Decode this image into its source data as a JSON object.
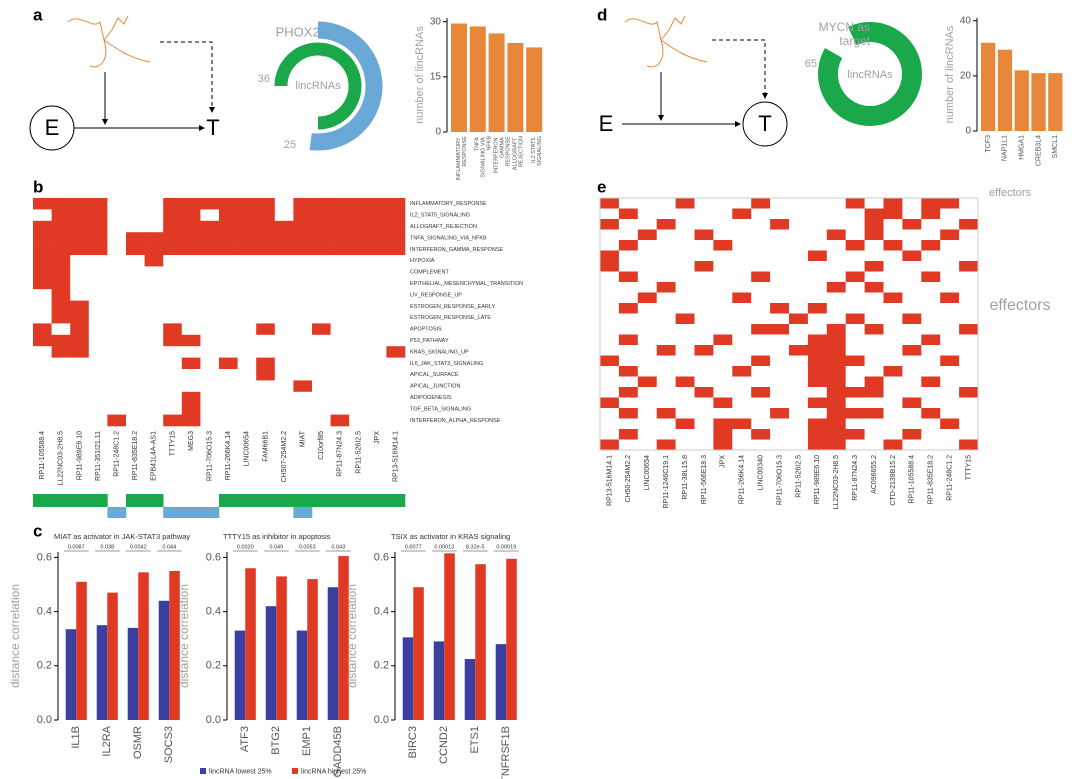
{
  "panel_labels": [
    "a",
    "b",
    "c",
    "d",
    "e"
  ],
  "diagrams": [
    {
      "source": "E",
      "target": "T"
    },
    {
      "source": "E",
      "target": "T"
    }
  ],
  "chart_data": [
    {
      "type": "donut",
      "lim": [
        0,
        48
      ],
      "center_label": "lincRNAs",
      "rings": [
        {
          "name": "MYCN",
          "color": "#1aa84a",
          "value": 36
        },
        {
          "name": "PHOX2B",
          "color": "#6aa8d8",
          "value": 25
        }
      ]
    },
    {
      "type": "bar",
      "ylabel": "number of lincRNAs",
      "color": "#e8873a",
      "categories": [
        "INFLAMMATORY RESPONSE",
        "TNFA SIGNALING VIA NFKB",
        "INTERFERON GAMMA RESPONSE",
        "ALLOGRAFT REJECTION",
        "IL2 STAT5 SIGNALING"
      ],
      "values": [
        29.5,
        28.7,
        26.8,
        24.2,
        23
      ],
      "ylim": [
        0,
        31
      ],
      "yticks": [
        0,
        15,
        30
      ]
    },
    {
      "type": "donut",
      "lim": [
        0,
        72
      ],
      "center_label": "lincRNAs",
      "rings": [
        {
          "name": "MYCN as target",
          "color": "#1aa84a",
          "value": 65
        }
      ]
    },
    {
      "type": "bar",
      "ylabel": "number of lincRNAs",
      "xlabel": "effectors",
      "color": "#e8873a",
      "categories": [
        "TCF3",
        "NAP1L1",
        "HMGA1",
        "CREB3L4",
        "SMCL1"
      ],
      "values": [
        32,
        29.5,
        22,
        21,
        21
      ],
      "ylim": [
        0,
        41
      ],
      "yticks": [
        0,
        20,
        40
      ]
    },
    {
      "type": "heatmap",
      "color": "#e03a25",
      "columns": [
        "RP11-105588.4",
        "LL22NC03-2H8.5",
        "RP11-989E6.10",
        "RP11-351I21.11",
        "RP11-248C1.2",
        "RP11-835E18.2",
        "EPB41L4A-AS1",
        "TTTY15",
        "MEG3",
        "RP11-706O15.3",
        "RP11-266K4.14",
        "LINC00654",
        "FAM66B1",
        "CH507-254M2.2",
        "MIAT",
        "C10orf85",
        "RP11-87N24.3",
        "RP11-526I2.5",
        "JPX",
        "RP13-516M14.1"
      ],
      "rows": [
        "INFLAMMATORY_RESPONSE",
        "IL2_STAT5_SIGNALING",
        "ALLOGRAFT_REJECTION",
        "TNFA_SIGNALING_VIA_NFKB",
        "INTERFERON_GAMMA_RESPONSE",
        "HYPOXIA",
        "COMPLEMENT",
        "EPITHELIAL_MESENCHYMAL_TRANSITION",
        "UV_RESPONSE_UP",
        "ESTROGEN_RESPONSE_EARLY",
        "ESTROGEN_RESPONSE_LATE",
        "APOPTOSIS",
        "P53_PATHWAY",
        "KRAS_SIGNALING_UP",
        "IL6_JAK_STAT3_SIGNALING",
        "APICAL_SURFACE",
        "APICAL_JUNCTION",
        "ADIPOGENESIS",
        "TGF_BETA_SIGNALING",
        "INTERFERON_ALPHA_RESPONSE"
      ],
      "matrix": [
        [
          1,
          1,
          1,
          1,
          0,
          0,
          0,
          1,
          1,
          1,
          1,
          1,
          1,
          0,
          1,
          1,
          1,
          1,
          1,
          1
        ],
        [
          0,
          1,
          1,
          1,
          0,
          0,
          0,
          1,
          1,
          0,
          1,
          1,
          1,
          0,
          1,
          1,
          1,
          1,
          1,
          1
        ],
        [
          1,
          1,
          1,
          1,
          0,
          0,
          0,
          1,
          1,
          1,
          1,
          1,
          1,
          1,
          1,
          1,
          1,
          1,
          1,
          1
        ],
        [
          1,
          1,
          1,
          1,
          0,
          1,
          1,
          1,
          1,
          1,
          1,
          1,
          1,
          1,
          1,
          1,
          1,
          1,
          1,
          1
        ],
        [
          1,
          1,
          1,
          1,
          0,
          1,
          1,
          1,
          1,
          1,
          1,
          1,
          1,
          1,
          1,
          1,
          1,
          1,
          1,
          1
        ],
        [
          1,
          1,
          0,
          0,
          0,
          0,
          1,
          0,
          0,
          0,
          0,
          0,
          0,
          0,
          0,
          0,
          0,
          0,
          0,
          0
        ],
        [
          1,
          1,
          0,
          0,
          0,
          0,
          0,
          0,
          0,
          0,
          0,
          0,
          0,
          0,
          0,
          0,
          0,
          0,
          0,
          0
        ],
        [
          1,
          1,
          0,
          0,
          0,
          0,
          0,
          0,
          0,
          0,
          0,
          0,
          0,
          0,
          0,
          0,
          0,
          0,
          0,
          0
        ],
        [
          0,
          1,
          0,
          0,
          0,
          0,
          0,
          0,
          0,
          0,
          0,
          0,
          0,
          0,
          0,
          0,
          0,
          0,
          0,
          0
        ],
        [
          0,
          1,
          1,
          0,
          0,
          0,
          0,
          0,
          0,
          0,
          0,
          0,
          0,
          0,
          0,
          0,
          0,
          0,
          0,
          0
        ],
        [
          0,
          1,
          1,
          0,
          0,
          0,
          0,
          0,
          0,
          0,
          0,
          0,
          0,
          0,
          0,
          0,
          0,
          0,
          0,
          0
        ],
        [
          1,
          0,
          1,
          0,
          0,
          0,
          0,
          1,
          0,
          0,
          0,
          0,
          1,
          0,
          0,
          1,
          0,
          0,
          0,
          0
        ],
        [
          1,
          1,
          1,
          0,
          0,
          0,
          0,
          1,
          1,
          0,
          0,
          0,
          0,
          0,
          0,
          0,
          0,
          0,
          0,
          0
        ],
        [
          0,
          1,
          1,
          0,
          0,
          0,
          0,
          0,
          0,
          0,
          0,
          0,
          0,
          0,
          0,
          0,
          0,
          0,
          0,
          1
        ],
        [
          0,
          0,
          0,
          0,
          0,
          0,
          0,
          0,
          1,
          0,
          1,
          0,
          1,
          0,
          0,
          0,
          0,
          0,
          0,
          0
        ],
        [
          0,
          0,
          0,
          0,
          0,
          0,
          0,
          0,
          0,
          0,
          0,
          0,
          1,
          0,
          0,
          0,
          0,
          0,
          0,
          0
        ],
        [
          0,
          0,
          0,
          0,
          0,
          0,
          0,
          0,
          0,
          0,
          0,
          0,
          0,
          0,
          1,
          0,
          0,
          0,
          0,
          0
        ],
        [
          0,
          0,
          0,
          0,
          0,
          0,
          0,
          0,
          1,
          0,
          0,
          0,
          0,
          0,
          0,
          0,
          0,
          0,
          0,
          0
        ],
        [
          0,
          0,
          0,
          0,
          0,
          0,
          0,
          0,
          1,
          0,
          0,
          0,
          0,
          0,
          0,
          0,
          0,
          0,
          0,
          0
        ],
        [
          0,
          0,
          0,
          0,
          1,
          0,
          0,
          1,
          1,
          0,
          0,
          0,
          0,
          0,
          0,
          0,
          1,
          0,
          0,
          0
        ]
      ]
    },
    {
      "type": "strip",
      "rows": [
        {
          "color": "#1aa84a",
          "values": [
            1,
            1,
            1,
            1,
            0,
            1,
            1,
            0,
            0,
            0,
            1,
            1,
            1,
            1,
            1,
            1,
            1,
            1,
            1,
            1
          ]
        },
        {
          "color": "#6aa8d8",
          "values": [
            0,
            0,
            0,
            0,
            1,
            0,
            0,
            1,
            1,
            1,
            0,
            0,
            0,
            0,
            1,
            0,
            0,
            0,
            0,
            0
          ]
        }
      ]
    },
    {
      "type": "heatmap",
      "color": "#e03a25",
      "ylabel": "effectors",
      "columns": [
        "RP13-516M14.1",
        "CH50-254M2.2",
        "LINC00654",
        "RP11-1246C19.1",
        "RP11-38L15.8",
        "RP11-566E18.3",
        "JPX",
        "RP11-266K4.14",
        "LINC00340",
        "RP11-706O15.3",
        "RP11-526I2.5",
        "RP11-989E6.10",
        "LL22NC03-2H8.5",
        "RP11-87N24.3",
        "AC096655.2",
        "CTD-2139B15.2",
        "RP11-105588.4",
        "RP11-835E18.2",
        "RP11-248C1.2",
        "TTTY15"
      ],
      "matrix": [
        [
          1,
          0,
          0,
          0,
          1,
          0,
          0,
          0,
          1,
          0,
          0,
          0,
          0,
          1,
          0,
          1,
          0,
          1,
          1,
          0
        ],
        [
          0,
          1,
          0,
          0,
          0,
          0,
          0,
          1,
          0,
          0,
          0,
          0,
          0,
          0,
          1,
          1,
          0,
          1,
          0,
          0
        ],
        [
          1,
          0,
          0,
          1,
          0,
          0,
          0,
          0,
          0,
          1,
          0,
          0,
          0,
          0,
          1,
          0,
          1,
          0,
          0,
          1
        ],
        [
          0,
          0,
          1,
          0,
          0,
          1,
          0,
          0,
          0,
          0,
          0,
          0,
          1,
          0,
          1,
          0,
          0,
          0,
          1,
          0
        ],
        [
          0,
          1,
          0,
          0,
          0,
          0,
          1,
          0,
          0,
          0,
          0,
          0,
          0,
          1,
          0,
          1,
          0,
          1,
          0,
          0
        ],
        [
          1,
          0,
          0,
          0,
          0,
          0,
          0,
          0,
          0,
          0,
          0,
          1,
          0,
          0,
          0,
          0,
          1,
          0,
          0,
          0
        ],
        [
          1,
          0,
          0,
          0,
          0,
          1,
          0,
          0,
          0,
          0,
          0,
          0,
          0,
          0,
          1,
          0,
          0,
          0,
          0,
          1
        ],
        [
          0,
          1,
          0,
          0,
          0,
          0,
          0,
          0,
          1,
          0,
          0,
          0,
          0,
          1,
          0,
          0,
          0,
          1,
          0,
          0
        ],
        [
          0,
          0,
          0,
          1,
          0,
          0,
          0,
          0,
          0,
          0,
          0,
          0,
          1,
          0,
          1,
          0,
          0,
          0,
          0,
          0
        ],
        [
          0,
          0,
          1,
          0,
          0,
          0,
          0,
          1,
          0,
          0,
          0,
          0,
          0,
          0,
          0,
          1,
          0,
          0,
          1,
          0
        ],
        [
          0,
          1,
          0,
          0,
          0,
          0,
          0,
          0,
          0,
          1,
          0,
          1,
          0,
          0,
          0,
          0,
          0,
          0,
          0,
          0
        ],
        [
          0,
          0,
          0,
          0,
          1,
          0,
          0,
          0,
          0,
          0,
          1,
          0,
          0,
          1,
          0,
          0,
          1,
          0,
          0,
          0
        ],
        [
          0,
          0,
          0,
          0,
          0,
          0,
          0,
          0,
          1,
          1,
          0,
          0,
          1,
          0,
          1,
          0,
          0,
          0,
          0,
          1
        ],
        [
          0,
          1,
          0,
          0,
          0,
          0,
          1,
          0,
          0,
          0,
          0,
          1,
          1,
          0,
          0,
          0,
          0,
          1,
          0,
          0
        ],
        [
          0,
          0,
          0,
          1,
          0,
          1,
          0,
          0,
          0,
          0,
          1,
          1,
          1,
          0,
          0,
          0,
          1,
          0,
          0,
          0
        ],
        [
          1,
          0,
          0,
          0,
          0,
          0,
          0,
          0,
          1,
          0,
          0,
          1,
          1,
          1,
          0,
          0,
          0,
          0,
          1,
          0
        ],
        [
          0,
          1,
          0,
          0,
          0,
          0,
          0,
          1,
          0,
          0,
          0,
          1,
          1,
          0,
          0,
          1,
          0,
          0,
          0,
          0
        ],
        [
          0,
          0,
          1,
          0,
          1,
          0,
          0,
          0,
          0,
          0,
          0,
          1,
          1,
          0,
          1,
          0,
          0,
          1,
          0,
          0
        ],
        [
          0,
          1,
          0,
          0,
          0,
          1,
          0,
          0,
          1,
          0,
          0,
          0,
          1,
          1,
          1,
          0,
          0,
          0,
          0,
          1
        ],
        [
          1,
          0,
          0,
          0,
          0,
          0,
          1,
          0,
          0,
          0,
          0,
          1,
          1,
          0,
          0,
          0,
          1,
          0,
          0,
          0
        ],
        [
          0,
          1,
          0,
          1,
          0,
          0,
          0,
          0,
          0,
          1,
          0,
          0,
          1,
          1,
          1,
          0,
          0,
          1,
          0,
          0
        ],
        [
          0,
          0,
          0,
          0,
          1,
          0,
          1,
          1,
          0,
          0,
          0,
          1,
          1,
          0,
          0,
          0,
          0,
          0,
          1,
          0
        ],
        [
          0,
          1,
          0,
          0,
          0,
          0,
          1,
          0,
          1,
          0,
          0,
          1,
          1,
          1,
          0,
          0,
          1,
          0,
          0,
          0
        ],
        [
          1,
          0,
          0,
          1,
          0,
          0,
          1,
          0,
          0,
          0,
          0,
          1,
          1,
          0,
          0,
          1,
          0,
          0,
          0,
          1
        ]
      ]
    },
    {
      "type": "grouped_bar",
      "title": "MIAT as activator in JAK-STAT3 pathway",
      "ylabel": "distance correlation",
      "categories": [
        "IL1B",
        "IL2RA",
        "OSMR",
        "SOCS3"
      ],
      "pvalues": [
        "0.0087",
        "0.038",
        "0.0042",
        "0.044"
      ],
      "series": [
        {
          "name": "lincRNA lowest 25%",
          "color": "#3a3fa0",
          "values": [
            0.335,
            0.35,
            0.34,
            0.44
          ]
        },
        {
          "name": "lincRNA highest 25%",
          "color": "#e03a25",
          "values": [
            0.51,
            0.47,
            0.545,
            0.55
          ]
        }
      ],
      "ylim": [
        0,
        0.62
      ],
      "yticks": [
        {
          "value": 0,
          "label": "0.0"
        },
        0.2,
        0.4,
        0.6
      ]
    },
    {
      "type": "grouped_bar",
      "title": "TTTY15 as inhibitor in apoptosis",
      "ylabel": "distance correlation",
      "categories": [
        "ATF3",
        "BTG2",
        "EMP1",
        "GADD45B"
      ],
      "pvalues": [
        "0.0020",
        "0.049",
        "0.0053",
        "0.043"
      ],
      "series": [
        {
          "name": "lincRNA lowest 25%",
          "color": "#3a3fa0",
          "values": [
            0.33,
            0.42,
            0.33,
            0.49
          ]
        },
        {
          "name": "lincRNA highest 25%",
          "color": "#e03a25",
          "values": [
            0.56,
            0.53,
            0.52,
            0.605
          ]
        }
      ],
      "ylim": [
        0,
        0.62
      ],
      "yticks": [
        {
          "value": 0,
          "label": "0.0"
        },
        0.2,
        0.4,
        0.6
      ]
    },
    {
      "type": "grouped_bar",
      "title": "TSIX as activator in KRAS signaling",
      "ylabel": "distance correlation",
      "categories": [
        "BIRC3",
        "CCND2",
        "ETS1",
        "TNFRSF1B"
      ],
      "pvalues": [
        "0.0077",
        "0.00013",
        "8.32e-5",
        "0.00019"
      ],
      "series": [
        {
          "name": "lincRNA lowest 25%",
          "color": "#3a3fa0",
          "values": [
            0.305,
            0.29,
            0.225,
            0.28
          ]
        },
        {
          "name": "lincRNA highest 25%",
          "color": "#e03a25",
          "values": [
            0.49,
            0.615,
            0.575,
            0.595
          ]
        }
      ],
      "ylim": [
        0,
        0.62
      ],
      "yticks": [
        {
          "value": 0,
          "label": "0.0"
        },
        0.2,
        0.4,
        0.6
      ]
    }
  ]
}
